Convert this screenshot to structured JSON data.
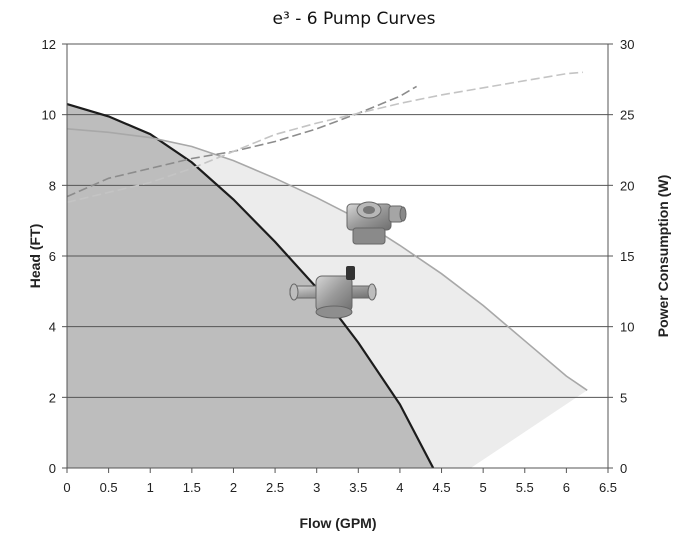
{
  "chart_data": {
    "type": "area",
    "title": "e³ - 6 Pump Curves",
    "xlabel": "Flow (GPM)",
    "ylabel": "Head (FT)",
    "y2label": "Power Consumption (W)",
    "xlim": [
      0,
      6.5
    ],
    "ylim": [
      0,
      12
    ],
    "y2lim": [
      0,
      30
    ],
    "x_ticks": [
      "0",
      "0.5",
      "1",
      "1.5",
      "2",
      "2.5",
      "3",
      "3.5",
      "4",
      "4.5",
      "5",
      "5.5",
      "6",
      "6.5"
    ],
    "y_ticks": [
      "0",
      "2",
      "4",
      "6",
      "8",
      "10",
      "12"
    ],
    "y2_ticks": [
      "0",
      "5",
      "10",
      "15",
      "20",
      "25",
      "30"
    ],
    "grid": "horizontal",
    "series": [
      {
        "axis": "left",
        "style": "solid-filled",
        "color": "#1c1c1c",
        "fill": "#bdbdbd",
        "points": [
          [
            0,
            10.3
          ],
          [
            0.5,
            9.95
          ],
          [
            1,
            9.45
          ],
          [
            1.5,
            8.65
          ],
          [
            2,
            7.6
          ],
          [
            2.5,
            6.4
          ],
          [
            3,
            5.1
          ],
          [
            3.5,
            3.55
          ],
          [
            4,
            1.8
          ],
          [
            4.4,
            0
          ]
        ]
      },
      {
        "axis": "left",
        "style": "solid-filled",
        "color": "#a8a8a8",
        "fill": "#ececec",
        "points": [
          [
            0,
            9.6
          ],
          [
            0.5,
            9.5
          ],
          [
            1,
            9.35
          ],
          [
            1.5,
            9.1
          ],
          [
            2,
            8.7
          ],
          [
            2.5,
            8.2
          ],
          [
            3,
            7.65
          ],
          [
            3.5,
            7.05
          ],
          [
            4,
            6.3
          ],
          [
            4.5,
            5.5
          ],
          [
            5,
            4.6
          ],
          [
            5.5,
            3.6
          ],
          [
            6,
            2.6
          ],
          [
            6.25,
            2.2
          ]
        ]
      },
      {
        "axis": "right",
        "style": "dashed",
        "color": "#8c8c8c",
        "points": [
          [
            0,
            19.2
          ],
          [
            0.5,
            20.5
          ],
          [
            1,
            21.2
          ],
          [
            1.5,
            21.9
          ],
          [
            2,
            22.4
          ],
          [
            2.5,
            23.1
          ],
          [
            3,
            24.0
          ],
          [
            3.5,
            25.1
          ],
          [
            4,
            26.3
          ],
          [
            4.2,
            27.0
          ]
        ]
      },
      {
        "axis": "right",
        "style": "dashed",
        "color": "#c4c4c4",
        "points": [
          [
            0,
            18.8
          ],
          [
            0.5,
            19.5
          ],
          [
            1,
            20.2
          ],
          [
            1.5,
            21.2
          ],
          [
            2,
            22.4
          ],
          [
            2.5,
            23.6
          ],
          [
            3,
            24.4
          ],
          [
            3.5,
            25.1
          ],
          [
            4,
            25.8
          ],
          [
            4.5,
            26.4
          ],
          [
            5,
            26.9
          ],
          [
            5.5,
            27.4
          ],
          [
            6,
            27.9
          ],
          [
            6.2,
            28.0
          ]
        ]
      }
    ],
    "colors": {
      "gridline": "#555555",
      "axis": "#555555",
      "pump_body": "#9a9a9a"
    },
    "annotations": [
      "pump-large-icon",
      "pump-inline-icon"
    ]
  }
}
